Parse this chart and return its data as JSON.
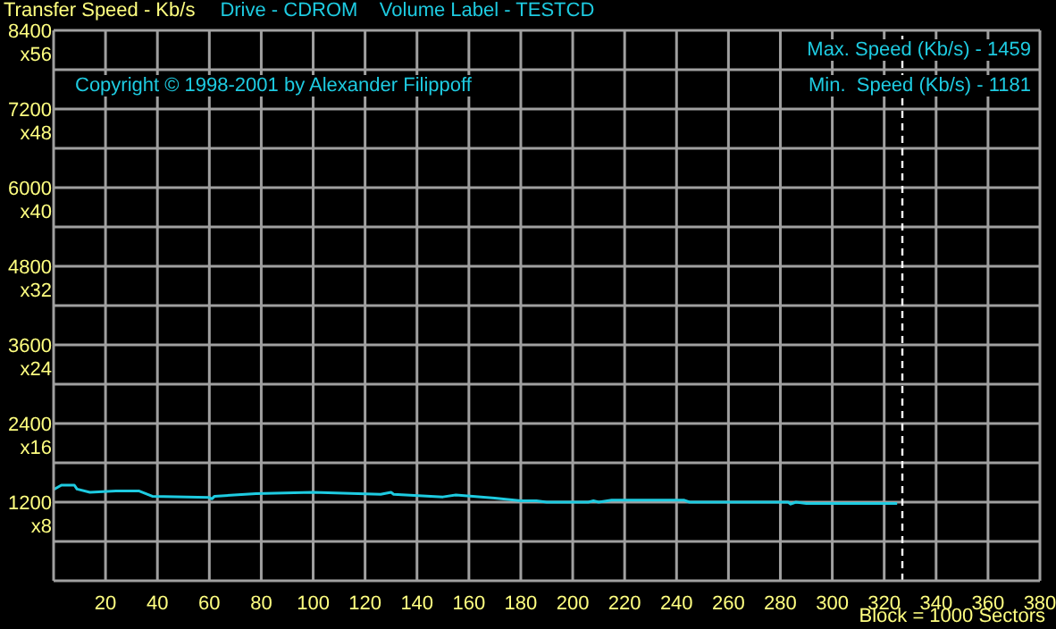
{
  "chart_data": {
    "type": "line",
    "title": "Transfer Speed - Kb/s",
    "subtitle": "Drive - CDROM    Volume Label - TESTCD",
    "xlabel": "Block = 1000 Sectors",
    "annotations": [
      "Copyright © 1998-2001 by Alexander Filippoff",
      "Max. Speed (Kb/s) - 1459",
      "Min.  Speed (Kb/s) - 1181",
      "x8",
      "x16",
      "x24",
      "x32",
      "x40",
      "x48",
      "x56"
    ],
    "series": [
      {
        "color": "#1ecbe1",
        "x": [
          0,
          3,
          8,
          9,
          14,
          24,
          33,
          38,
          60,
          61,
          62,
          78,
          100,
          126,
          130,
          131,
          150,
          155,
          170,
          180,
          186,
          190,
          206,
          208,
          210,
          215,
          243,
          245,
          283,
          284,
          286,
          290,
          325
        ],
        "values": [
          1390,
          1459,
          1459,
          1400,
          1350,
          1370,
          1370,
          1290,
          1270,
          1250,
          1290,
          1330,
          1350,
          1320,
          1350,
          1320,
          1280,
          1310,
          1260,
          1220,
          1220,
          1200,
          1200,
          1220,
          1200,
          1230,
          1230,
          1200,
          1200,
          1170,
          1200,
          1181,
          1181
        ]
      }
    ],
    "xlim": [
      0,
      380
    ],
    "xticks": [
      20,
      40,
      60,
      80,
      100,
      120,
      140,
      160,
      180,
      200,
      220,
      240,
      260,
      280,
      300,
      320,
      340,
      360,
      380
    ],
    "ylim": [
      0,
      8400
    ],
    "yticks": [
      {
        "value": 600,
        "label": null
      },
      1200,
      {
        "value": 1800,
        "label": null
      },
      2400,
      {
        "value": 3000,
        "label": null
      },
      3600,
      {
        "value": 4200,
        "label": null
      },
      4800,
      {
        "value": 5400,
        "label": null
      },
      6000,
      {
        "value": 6600,
        "label": null
      },
      7200,
      {
        "value": 7800,
        "label": null
      },
      8400
    ],
    "grid": true,
    "ref_lines": [
      {
        "axis": "x",
        "value": 327,
        "color": "#ffffff",
        "line_style": "dashed"
      }
    ]
  }
}
